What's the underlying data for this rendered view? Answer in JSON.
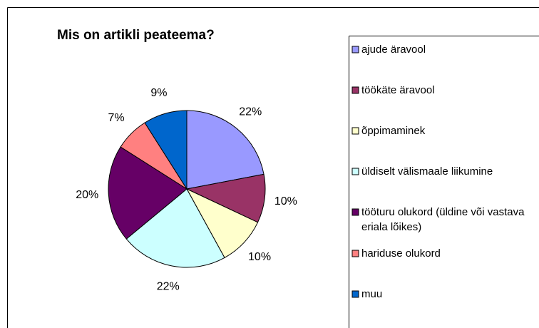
{
  "chart_data": {
    "type": "pie",
    "title": "Mis on artikli peateema?",
    "categories": [
      "ajude äravool",
      "töökäte äravool",
      "õppimaminek",
      "üldiselt välismaale liikumine",
      "tööturu olukord (üldine või vastava eriala lõikes)",
      "hariduse olukord",
      "muu"
    ],
    "values": [
      22,
      10,
      10,
      22,
      20,
      7,
      9
    ],
    "value_labels": [
      "22%",
      "10%",
      "10%",
      "22%",
      "20%",
      "7%",
      "9%"
    ],
    "colors": [
      "#9999ff",
      "#993366",
      "#ffffcc",
      "#ccffff",
      "#660066",
      "#ff8080",
      "#0066cc"
    ],
    "legend": "right"
  }
}
